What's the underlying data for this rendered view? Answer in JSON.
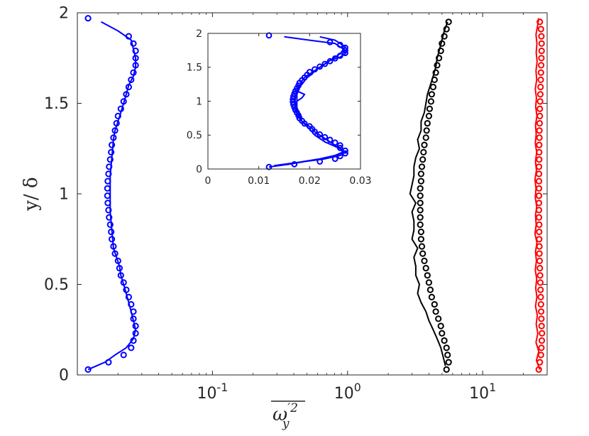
{
  "chart_data": [
    {
      "type": "scatter",
      "title": "",
      "xscale": "log",
      "xlim": [
        0.01,
        30
      ],
      "ylim": [
        0,
        2
      ],
      "xticks": [
        {
          "value": 0.1,
          "base": "10",
          "exp": "-1"
        },
        {
          "value": 1,
          "base": "10",
          "exp": "0"
        },
        {
          "value": 10,
          "base": "10",
          "exp": "1"
        }
      ],
      "yticks": [
        {
          "value": 0,
          "label": "0"
        },
        {
          "value": 0.5,
          "label": "0.5"
        },
        {
          "value": 1,
          "label": "1"
        },
        {
          "value": 1.5,
          "label": "1.5"
        },
        {
          "value": 2,
          "label": "2"
        }
      ],
      "xlabel": {
        "base": "ω",
        "prime": "′2",
        "sub": "y"
      },
      "ylabel": "y/ δ",
      "grid": false,
      "series": [
        {
          "color": "#0000ff",
          "style": "line",
          "y": [
            0.03,
            0.07,
            0.11,
            0.15,
            0.2,
            0.25,
            0.3,
            0.35,
            0.4,
            0.45,
            0.5,
            0.55,
            0.6,
            0.65,
            0.7,
            0.8,
            0.9,
            1.0,
            1.1,
            1.2,
            1.3,
            1.35,
            1.4,
            1.45,
            1.5,
            1.55,
            1.6,
            1.65,
            1.7,
            1.75,
            1.8,
            1.85,
            1.9,
            1.95
          ],
          "x": [
            0.012,
            0.016,
            0.019,
            0.023,
            0.026,
            0.027,
            0.026,
            0.025,
            0.024,
            0.023,
            0.022,
            0.021,
            0.0205,
            0.0195,
            0.0185,
            0.018,
            0.0175,
            0.0175,
            0.0175,
            0.018,
            0.0185,
            0.019,
            0.02,
            0.021,
            0.022,
            0.023,
            0.024,
            0.026,
            0.027,
            0.027,
            0.026,
            0.025,
            0.02,
            0.015
          ]
        },
        {
          "color": "#0000ff",
          "style": "markers",
          "y": [
            0.03,
            0.07,
            0.11,
            0.15,
            0.19,
            0.23,
            0.27,
            0.31,
            0.35,
            0.39,
            0.43,
            0.47,
            0.51,
            0.55,
            0.59,
            0.63,
            0.67,
            0.71,
            0.75,
            0.79,
            0.83,
            0.87,
            0.91,
            0.95,
            0.99,
            1.03,
            1.07,
            1.11,
            1.15,
            1.19,
            1.23,
            1.27,
            1.31,
            1.35,
            1.39,
            1.43,
            1.47,
            1.51,
            1.55,
            1.59,
            1.63,
            1.67,
            1.71,
            1.75,
            1.79,
            1.83,
            1.87,
            1.97
          ],
          "x": [
            0.012,
            0.017,
            0.022,
            0.025,
            0.026,
            0.027,
            0.027,
            0.026,
            0.026,
            0.025,
            0.024,
            0.023,
            0.022,
            0.021,
            0.0205,
            0.02,
            0.019,
            0.0185,
            0.018,
            0.0178,
            0.0175,
            0.0172,
            0.017,
            0.0168,
            0.0167,
            0.0167,
            0.0168,
            0.017,
            0.0172,
            0.0175,
            0.0178,
            0.018,
            0.0185,
            0.019,
            0.0195,
            0.02,
            0.021,
            0.022,
            0.023,
            0.024,
            0.025,
            0.026,
            0.027,
            0.027,
            0.027,
            0.026,
            0.024,
            0.012
          ]
        },
        {
          "color": "#000000",
          "style": "line",
          "y": [
            0.05,
            0.1,
            0.15,
            0.2,
            0.25,
            0.3,
            0.35,
            0.4,
            0.45,
            0.5,
            0.55,
            0.6,
            0.65,
            0.7,
            0.75,
            0.8,
            0.85,
            0.9,
            0.95,
            1.0,
            1.05,
            1.1,
            1.15,
            1.2,
            1.25,
            1.3,
            1.35,
            1.4,
            1.45,
            1.5,
            1.55,
            1.6,
            1.65,
            1.7,
            1.75,
            1.8,
            1.85,
            1.9,
            1.95
          ],
          "x": [
            5.3,
            5.1,
            4.9,
            4.6,
            4.3,
            4.0,
            3.8,
            3.5,
            3.3,
            3.4,
            3.2,
            3.2,
            3.1,
            3.3,
            3.0,
            3.1,
            3.1,
            3.0,
            3.2,
            2.9,
            3.0,
            3.1,
            3.1,
            3.2,
            3.4,
            3.3,
            3.5,
            3.5,
            3.7,
            3.8,
            3.9,
            4.1,
            4.3,
            4.5,
            4.6,
            4.8,
            5.0,
            5.2,
            5.5
          ]
        },
        {
          "color": "#000000",
          "style": "markers",
          "y": [
            0.03,
            0.07,
            0.11,
            0.15,
            0.19,
            0.23,
            0.27,
            0.31,
            0.35,
            0.39,
            0.43,
            0.47,
            0.51,
            0.55,
            0.59,
            0.63,
            0.67,
            0.71,
            0.75,
            0.79,
            0.83,
            0.87,
            0.91,
            0.95,
            0.99,
            1.03,
            1.07,
            1.11,
            1.15,
            1.19,
            1.23,
            1.27,
            1.31,
            1.35,
            1.39,
            1.43,
            1.47,
            1.51,
            1.55,
            1.59,
            1.63,
            1.67,
            1.71,
            1.75,
            1.79,
            1.83,
            1.87,
            1.91,
            1.95
          ],
          "x": [
            5.4,
            5.6,
            5.5,
            5.4,
            5.2,
            5.0,
            4.9,
            4.7,
            4.5,
            4.4,
            4.2,
            4.1,
            4.0,
            3.9,
            3.8,
            3.7,
            3.6,
            3.55,
            3.5,
            3.5,
            3.45,
            3.45,
            3.45,
            3.45,
            3.45,
            3.45,
            3.5,
            3.5,
            3.55,
            3.6,
            3.65,
            3.7,
            3.8,
            3.85,
            3.9,
            4.0,
            4.05,
            4.15,
            4.2,
            4.3,
            4.4,
            4.5,
            4.6,
            4.75,
            4.9,
            5.0,
            5.2,
            5.4,
            5.6
          ]
        },
        {
          "color": "#ff0000",
          "style": "line",
          "y": [
            0.03,
            0.08,
            0.13,
            0.18,
            0.23,
            0.28,
            0.33,
            0.38,
            0.43,
            0.48,
            0.53,
            0.58,
            0.63,
            0.68,
            0.73,
            0.78,
            0.83,
            0.88,
            0.93,
            0.98,
            1.03,
            1.08,
            1.13,
            1.18,
            1.23,
            1.28,
            1.33,
            1.38,
            1.43,
            1.48,
            1.53,
            1.58,
            1.63,
            1.68,
            1.73,
            1.78,
            1.83,
            1.88,
            1.93,
            1.97
          ],
          "x": [
            26.5,
            25.0,
            26.0,
            24.8,
            25.6,
            24.9,
            25.4,
            24.6,
            25.2,
            24.7,
            25.1,
            24.5,
            25.0,
            24.6,
            25.2,
            24.4,
            24.9,
            24.6,
            25.1,
            24.5,
            24.8,
            24.4,
            25.0,
            24.6,
            25.1,
            24.5,
            24.9,
            24.6,
            25.2,
            24.7,
            25.0,
            24.5,
            25.1,
            24.8,
            25.3,
            24.9,
            25.2,
            24.8,
            25.5,
            26.0
          ]
        },
        {
          "color": "#ff0000",
          "style": "markers",
          "y": [
            0.03,
            0.07,
            0.11,
            0.15,
            0.19,
            0.23,
            0.27,
            0.31,
            0.35,
            0.39,
            0.43,
            0.47,
            0.51,
            0.55,
            0.59,
            0.63,
            0.67,
            0.71,
            0.75,
            0.79,
            0.83,
            0.87,
            0.91,
            0.95,
            0.99,
            1.03,
            1.07,
            1.11,
            1.15,
            1.19,
            1.23,
            1.27,
            1.31,
            1.35,
            1.39,
            1.43,
            1.47,
            1.51,
            1.55,
            1.59,
            1.63,
            1.67,
            1.71,
            1.75,
            1.79,
            1.83,
            1.87,
            1.91,
            1.95
          ],
          "x": [
            26,
            26.5,
            27,
            27.2,
            27.4,
            27.5,
            27.3,
            27.2,
            27.1,
            27,
            26.9,
            26.8,
            26.7,
            26.6,
            26.5,
            26.4,
            26.3,
            26.3,
            26.2,
            26.2,
            26.2,
            26.1,
            26.1,
            26.1,
            26.1,
            26.1,
            26.1,
            26.1,
            26.1,
            26.2,
            26.2,
            26.2,
            26.3,
            26.3,
            26.4,
            26.5,
            26.5,
            26.6,
            26.7,
            26.8,
            26.9,
            27,
            27.1,
            27.2,
            27.3,
            27.3,
            27.2,
            27.0,
            26.5
          ]
        }
      ]
    },
    {
      "type": "scatter",
      "title": "",
      "xlim": [
        0,
        0.03
      ],
      "ylim": [
        0,
        2
      ],
      "xticks": [
        {
          "value": 0,
          "label": "0"
        },
        {
          "value": 0.01,
          "label": "0.01"
        },
        {
          "value": 0.02,
          "label": "0.02"
        },
        {
          "value": 0.03,
          "label": "0.03"
        }
      ],
      "yticks": [
        {
          "value": 0,
          "label": "0"
        },
        {
          "value": 0.5,
          "label": "0.5"
        },
        {
          "value": 1,
          "label": "1"
        },
        {
          "value": 1.5,
          "label": "1.5"
        },
        {
          "value": 2,
          "label": "2"
        }
      ],
      "grid": false,
      "series": [
        {
          "color": "#0000ff",
          "style": "line",
          "y": [
            0.03,
            0.07,
            0.11,
            0.15,
            0.2,
            0.25,
            0.3,
            0.35,
            0.4,
            0.45,
            0.5,
            0.55,
            0.6,
            0.65,
            0.7,
            0.8,
            0.9,
            1.0,
            1.1,
            1.2,
            1.3,
            1.35,
            1.4,
            1.45,
            1.5,
            1.55,
            1.6,
            1.65,
            1.7,
            1.75,
            1.8,
            1.85,
            1.9,
            1.95
          ],
          "x": [
            0.012,
            0.016,
            0.019,
            0.023,
            0.026,
            0.027,
            0.026,
            0.025,
            0.024,
            0.023,
            0.022,
            0.021,
            0.0205,
            0.0195,
            0.0185,
            0.018,
            0.0175,
            0.0175,
            0.0175,
            0.018,
            0.0185,
            0.019,
            0.02,
            0.021,
            0.022,
            0.023,
            0.024,
            0.026,
            0.027,
            0.027,
            0.026,
            0.025,
            0.02,
            0.015
          ]
        },
        {
          "color": "#0000ff",
          "style": "line",
          "y": [
            0.05,
            0.1,
            0.15,
            0.2,
            0.25,
            0.3,
            0.35,
            0.4,
            0.45,
            0.5,
            0.55,
            0.6,
            0.65,
            0.7,
            0.75,
            0.8,
            0.85,
            0.9,
            0.95,
            1.0,
            1.05,
            1.1,
            1.15,
            1.2,
            1.25,
            1.3,
            1.35,
            1.4,
            1.45,
            1.5,
            1.55,
            1.6,
            1.65,
            1.7,
            1.75,
            1.8,
            1.85,
            1.9,
            1.95
          ],
          "x": [
            0.013,
            0.018,
            0.022,
            0.025,
            0.0265,
            0.026,
            0.0245,
            0.023,
            0.022,
            0.021,
            0.0205,
            0.0198,
            0.0192,
            0.0185,
            0.018,
            0.0176,
            0.0174,
            0.0172,
            0.0173,
            0.0175,
            0.0185,
            0.019,
            0.0175,
            0.0178,
            0.0185,
            0.019,
            0.0195,
            0.0205,
            0.021,
            0.022,
            0.023,
            0.024,
            0.025,
            0.026,
            0.0265,
            0.027,
            0.026,
            0.025,
            0.022
          ]
        },
        {
          "color": "#0000ff",
          "style": "markers",
          "y": [
            0.03,
            0.07,
            0.11,
            0.15,
            0.19,
            0.23,
            0.27,
            0.31,
            0.35,
            0.39,
            0.43,
            0.47,
            0.51,
            0.55,
            0.59,
            0.63,
            0.67,
            0.71,
            0.75,
            0.79,
            0.83,
            0.87,
            0.91,
            0.95,
            0.99,
            1.03,
            1.07,
            1.11,
            1.15,
            1.19,
            1.23,
            1.27,
            1.31,
            1.35,
            1.39,
            1.43,
            1.47,
            1.51,
            1.55,
            1.59,
            1.63,
            1.67,
            1.71,
            1.75,
            1.79,
            1.83,
            1.87,
            1.97
          ],
          "x": [
            0.012,
            0.017,
            0.022,
            0.025,
            0.026,
            0.027,
            0.027,
            0.026,
            0.026,
            0.025,
            0.024,
            0.023,
            0.022,
            0.021,
            0.0205,
            0.02,
            0.019,
            0.0185,
            0.018,
            0.0178,
            0.0175,
            0.0172,
            0.017,
            0.0168,
            0.0167,
            0.0167,
            0.0168,
            0.017,
            0.0172,
            0.0175,
            0.0178,
            0.018,
            0.0185,
            0.019,
            0.0195,
            0.02,
            0.021,
            0.022,
            0.023,
            0.024,
            0.025,
            0.026,
            0.027,
            0.027,
            0.027,
            0.026,
            0.024,
            0.012
          ]
        }
      ]
    }
  ]
}
